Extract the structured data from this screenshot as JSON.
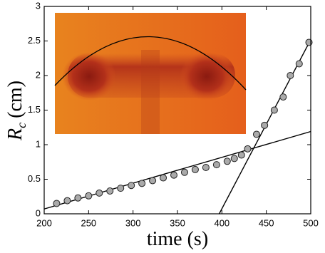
{
  "chart_data": {
    "type": "scatter",
    "xlabel": "time (s)",
    "ylabel": {
      "symbol": "R",
      "subscript": "c",
      "unit": "(cm)"
    },
    "xlim": [
      200,
      500
    ],
    "ylim": [
      0,
      3
    ],
    "xticks": [
      200,
      250,
      300,
      350,
      400,
      450,
      500
    ],
    "yticks": [
      0,
      0.5,
      1,
      1.5,
      2,
      2.5,
      3
    ],
    "color": "#aaaaaa",
    "x": [
      214,
      226,
      238,
      250,
      262,
      274,
      286,
      298,
      310,
      322,
      334,
      346,
      358,
      370,
      382,
      394,
      406,
      414,
      422,
      429,
      439,
      448,
      459,
      469,
      477,
      487,
      498
    ],
    "values": [
      0.15,
      0.19,
      0.23,
      0.26,
      0.3,
      0.33,
      0.37,
      0.41,
      0.44,
      0.48,
      0.52,
      0.56,
      0.6,
      0.64,
      0.67,
      0.71,
      0.76,
      0.8,
      0.85,
      0.94,
      1.15,
      1.28,
      1.5,
      1.69,
      2.0,
      2.17,
      2.48
    ],
    "fits": [
      {
        "x": [
          200,
          500
        ],
        "y": [
          0.07,
          1.19
        ]
      },
      {
        "x": [
          397,
          500
        ],
        "y": [
          0,
          2.52
        ]
      }
    ]
  }
}
